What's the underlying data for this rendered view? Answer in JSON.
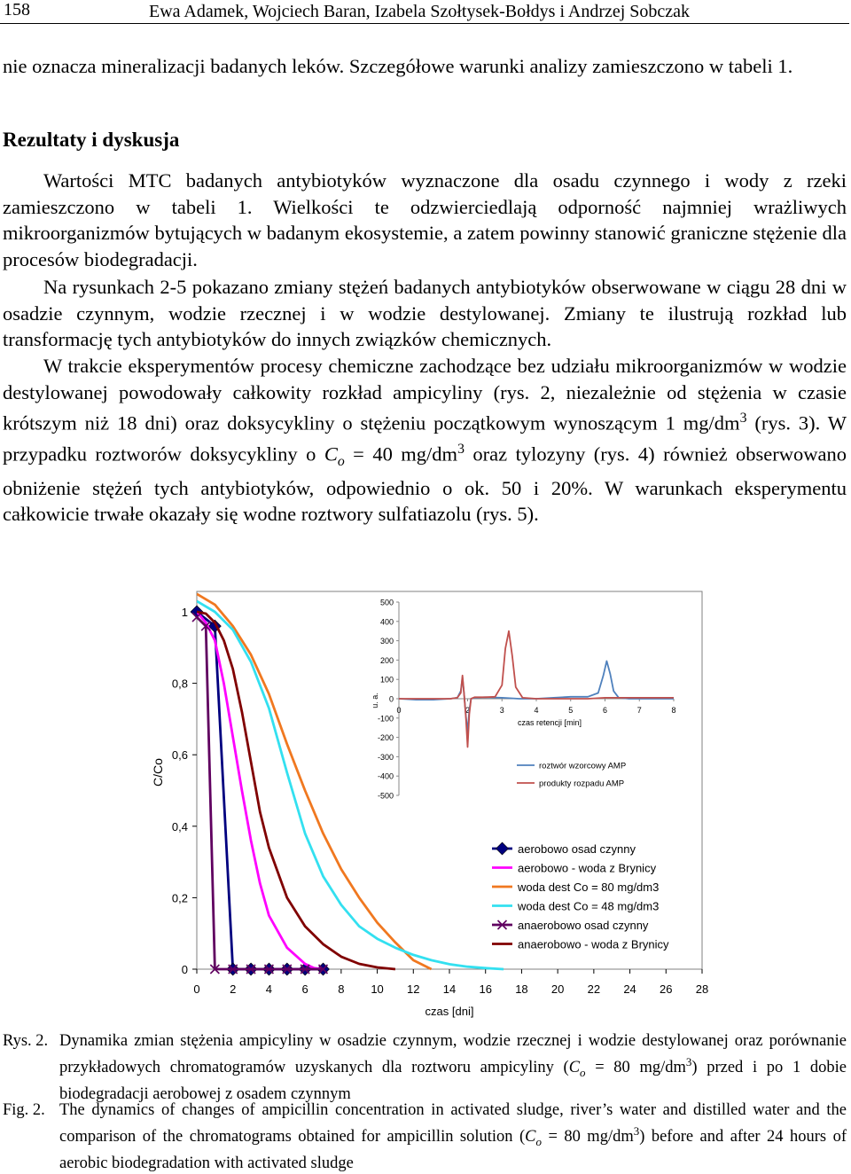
{
  "header": {
    "page_number": "158",
    "authors": "Ewa Adamek, Wojciech Baran, Izabela Szołtysek-Bołdys i Andrzej Sobczak"
  },
  "intro_text": "nie oznacza mineralizacji badanych leków. Szczegółowe warunki analizy zamieszczono w tabeli 1.",
  "section_heading": "Rezultaty i dyskusja",
  "paragraphs": {
    "p1": "Wartości MTC badanych antybiotyków wyznaczone dla osadu czynnego i wody z rzeki zamieszczono w tabeli 1. Wielkości te odzwierciedlają odporność najmniej wrażliwych mikroorganizmów bytujących w badanym ekosystemie, a zatem powinny stanowić graniczne stężenie dla procesów biodegradacji.",
    "p2": "Na rysunkach 2-5 pokazano zmiany stężeń badanych antybiotyków obserwowane w ciągu 28 dni w osadzie czynnym, wodzie rzecznej i w wodzie destylowanej. Zmiany te ilustrują rozkład lub transformację tych antybiotyków do innych związków chemicznych.",
    "p3_a": "W trakcie eksperymentów procesy chemiczne zachodzące bez udziału mikroorganizmów w wodzie destylowanej powodowały całkowity rozkład ampicyliny (rys. 2, niezależnie od stężenia w czasie krótszym niż 18 dni) oraz doksycykliny o stężeniu początkowym wynoszącym 1 mg/dm",
    "p3_sup1": "3",
    "p3_b": " (rys. 3). W przypadku roztworów doksycykliny o ",
    "p3_C": "C",
    "p3_o": "o",
    "p3_c": " = 40 mg/dm",
    "p3_sup2": "3",
    "p3_d": " oraz tylozyny (rys. 4) również obserwowano obniżenie stężeń tych antybiotyków, odpowiednio o ok. 50 i 20%. W warunkach eksperymentu całkowicie trwałe okazały się wodne roztwory sulfatiazolu (rys. 5)."
  },
  "chart_data": [
    {
      "type": "line",
      "xlabel": "czas [dni]",
      "ylabel": "C/Co",
      "xlim": [
        0,
        28
      ],
      "ylim": [
        0,
        1
      ],
      "xticks": [
        "0",
        "2",
        "4",
        "6",
        "8",
        "10",
        "12",
        "14",
        "16",
        "18",
        "20",
        "22",
        "24",
        "26",
        "28"
      ],
      "yticks": [
        "0",
        "0,2",
        "0,4",
        "0,6",
        "0,8",
        "1"
      ],
      "legend_position": "bottom-right",
      "series": [
        {
          "name": "aerobowo osad czynny",
          "color": "#00007f",
          "marker": "diamond",
          "x": [
            0,
            1,
            2,
            3,
            4,
            5,
            6,
            7
          ],
          "y": [
            1.0,
            0.96,
            0,
            0,
            0,
            0,
            0,
            0
          ]
        },
        {
          "name": "aerobowo - woda z Brynicy",
          "color": "#ff00ff",
          "marker": "none",
          "x": [
            0,
            0.5,
            1,
            1.5,
            2,
            2.5,
            3,
            3.5,
            4,
            5,
            6,
            6.5,
            7
          ],
          "y": [
            1.0,
            0.97,
            0.92,
            0.8,
            0.65,
            0.5,
            0.36,
            0.24,
            0.15,
            0.06,
            0.015,
            0.003,
            0
          ]
        },
        {
          "name": "woda dest Co = 80 mg/dm3",
          "color": "#f07820",
          "marker": "none",
          "x": [
            0,
            1,
            2,
            3,
            4,
            5,
            6,
            7,
            8,
            9,
            10,
            11,
            12,
            13
          ],
          "y": [
            1.05,
            1.02,
            0.96,
            0.88,
            0.77,
            0.63,
            0.5,
            0.38,
            0.28,
            0.2,
            0.13,
            0.075,
            0.025,
            0
          ]
        },
        {
          "name": "woda dest Co = 48 mg/dm3",
          "color": "#33e0f0",
          "marker": "none",
          "x": [
            0,
            1,
            2,
            3,
            4,
            5,
            6,
            7,
            8,
            9,
            10,
            11,
            12,
            13,
            14,
            15,
            16,
            17
          ],
          "y": [
            1.03,
            1.0,
            0.95,
            0.86,
            0.73,
            0.55,
            0.38,
            0.26,
            0.18,
            0.12,
            0.085,
            0.06,
            0.04,
            0.025,
            0.014,
            0.007,
            0.003,
            0
          ]
        },
        {
          "name": "anaerobowo osad czynny",
          "color": "#600060",
          "marker": "x",
          "x": [
            0,
            0.5,
            1,
            2,
            3,
            4,
            5,
            6,
            7
          ],
          "y": [
            0.985,
            0.96,
            0,
            0,
            0,
            0,
            0,
            0,
            0
          ]
        },
        {
          "name": "anaerobowo - woda z Brynicy",
          "color": "#800000",
          "marker": "none",
          "x": [
            0,
            0.5,
            1,
            1.5,
            2,
            2.5,
            3,
            3.5,
            4,
            5,
            6,
            7,
            8,
            9,
            10,
            11
          ],
          "y": [
            1.0,
            0.995,
            0.97,
            0.92,
            0.84,
            0.72,
            0.58,
            0.44,
            0.34,
            0.2,
            0.12,
            0.07,
            0.035,
            0.015,
            0.005,
            0
          ]
        }
      ]
    },
    {
      "type": "line",
      "xlabel": "czas retencji [min]",
      "ylabel": "u. a.",
      "xlim": [
        0,
        8
      ],
      "ylim": [
        -500,
        500
      ],
      "xticks": [
        "0",
        "2",
        "3",
        "4",
        "5",
        "6",
        "7",
        "8"
      ],
      "yticks": [
        "-500",
        "-400",
        "-300",
        "-200",
        "-100",
        "0",
        "100",
        "200",
        "300",
        "400",
        "500"
      ],
      "legend_position": "bottom-right",
      "series": [
        {
          "name": "roztwór wzorcowy AMP",
          "color": "#4f81bd",
          "x": [
            0,
            0.5,
            1,
            1.5,
            1.7,
            1.8,
            1.85,
            1.9,
            1.95,
            2.0,
            2.05,
            2.1,
            2.2,
            2.5,
            3,
            3.5,
            4,
            4.5,
            5,
            5.5,
            5.8,
            5.95,
            6.05,
            6.15,
            6.25,
            6.4,
            6.7,
            7,
            7.5,
            8
          ],
          "y": [
            0,
            -5,
            -5,
            0,
            5,
            40,
            110,
            20,
            -90,
            -170,
            -60,
            0,
            5,
            8,
            5,
            0,
            0,
            5,
            10,
            10,
            30,
            120,
            195,
            130,
            40,
            5,
            0,
            0,
            0,
            0
          ]
        },
        {
          "name": "produkty rozpadu AMP",
          "color": "#c0504d",
          "x": [
            0,
            0.5,
            1,
            1.5,
            1.7,
            1.8,
            1.85,
            1.9,
            1.95,
            2.0,
            2.05,
            2.1,
            2.2,
            2.5,
            2.8,
            3.0,
            3.1,
            3.2,
            3.3,
            3.4,
            3.6,
            4,
            4.5,
            5,
            5.5,
            6,
            6.5,
            7,
            7.5,
            8
          ],
          "y": [
            0,
            0,
            0,
            0,
            5,
            30,
            120,
            20,
            -100,
            -250,
            -80,
            0,
            8,
            8,
            10,
            70,
            260,
            350,
            220,
            60,
            5,
            0,
            0,
            0,
            0,
            5,
            5,
            5,
            5,
            5
          ]
        }
      ]
    }
  ],
  "captions": {
    "pl_label": "Rys. 2.",
    "pl_a": "Dynamika zmian stężenia ampicyliny w osadzie czynnym, wodzie rzecznej i wodzie destylowanej oraz porównanie przykładowych chromatogramów uzyskanych dla roztworu ampicyliny (",
    "pl_C": "C",
    "pl_o": "o",
    "pl_b": " = 80 mg/dm",
    "pl_sup": "3",
    "pl_c": ") przed i po 1 dobie biodegradacji aerobowej z osadem czynnym",
    "en_label": "Fig. 2.",
    "en_a": "The dynamics of changes of ampicillin concentration in activated sludge, river’s water and distilled water and the comparison of the chromatograms obtained for ampicillin solution (",
    "en_C": "C",
    "en_o": "o",
    "en_b": " = 80 mg/dm",
    "en_sup": "3",
    "en_c": ") before and after 24 hours of aerobic biodegradation with activated sludge"
  }
}
